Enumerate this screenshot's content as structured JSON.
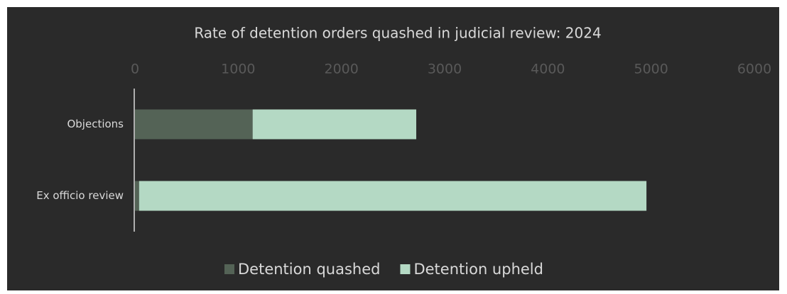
{
  "chart_data": {
    "type": "stacked_bar_horizontal",
    "title": "Rate of detention orders quashed in judicial review: 2024",
    "categories": [
      "Objections",
      "Ex officio review"
    ],
    "series": [
      {
        "name": "Detention quashed",
        "color": "#546356",
        "values": [
          1140,
          40
        ]
      },
      {
        "name": "Detention upheld",
        "color": "#b4d9c4",
        "values": [
          1585,
          4915
        ]
      }
    ],
    "xlim": [
      0,
      6000
    ],
    "xticks": [
      0,
      1000,
      2000,
      3000,
      4000,
      5000,
      6000
    ],
    "legend": "bottom"
  }
}
